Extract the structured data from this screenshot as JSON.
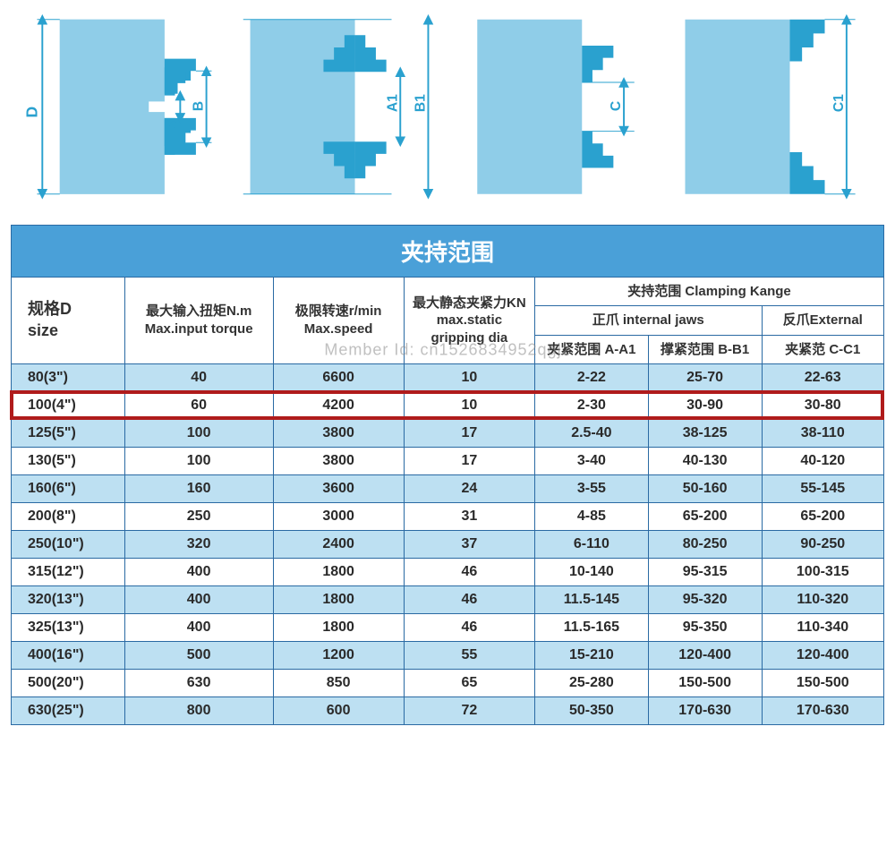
{
  "watermark": "Member Id: cn1526834952qgjz",
  "colors": {
    "shape_fill": "#2aa1cf",
    "shape_fill_light": "#8fcde8",
    "dim_line": "#2aa1cf",
    "border": "#2a6aa3",
    "header_bg": "#4aa0d8",
    "row_alt": "#bde0f2",
    "highlight": "#b01b1b"
  },
  "diagrams": {
    "labels": {
      "D": "D",
      "A": "A",
      "B": "B",
      "A1": "A1",
      "B1": "B1",
      "C": "C",
      "C1": "C1"
    }
  },
  "table": {
    "title": "夹持范围",
    "columns": {
      "size": {
        "l1": "规格D",
        "l2": "size"
      },
      "torque": {
        "l1": "最大输入扭矩N.m",
        "l2": "Max.input torque"
      },
      "speed": {
        "l1": "极限转速r/min",
        "l2": "Max.speed"
      },
      "grip": {
        "l1": "最大静态夹紧力KN",
        "l2": "max.static",
        "l3": "gripping dia"
      },
      "range_group": "夹持范围 Clamping Kange",
      "internal": "正爪 internal jaws",
      "external": "反爪External",
      "aa1": "夹紧范围 A-A1",
      "bb1": "撑紧范围 B-B1",
      "cc1": "夹紧范 C-C1"
    },
    "col_widths_pct": [
      13,
      17,
      15,
      15,
      13,
      13,
      14
    ],
    "highlight_row_index": 1,
    "rows": [
      {
        "size": "80(3\")",
        "torque": "40",
        "speed": "6600",
        "grip": "10",
        "aa1": "2-22",
        "bb1": "25-70",
        "cc1": "22-63"
      },
      {
        "size": "100(4\")",
        "torque": "60",
        "speed": "4200",
        "grip": "10",
        "aa1": "2-30",
        "bb1": "30-90",
        "cc1": "30-80"
      },
      {
        "size": "125(5\")",
        "torque": "100",
        "speed": "3800",
        "grip": "17",
        "aa1": "2.5-40",
        "bb1": "38-125",
        "cc1": "38-110"
      },
      {
        "size": "130(5\")",
        "torque": "100",
        "speed": "3800",
        "grip": "17",
        "aa1": "3-40",
        "bb1": "40-130",
        "cc1": "40-120"
      },
      {
        "size": "160(6\")",
        "torque": "160",
        "speed": "3600",
        "grip": "24",
        "aa1": "3-55",
        "bb1": "50-160",
        "cc1": "55-145"
      },
      {
        "size": "200(8\")",
        "torque": "250",
        "speed": "3000",
        "grip": "31",
        "aa1": "4-85",
        "bb1": "65-200",
        "cc1": "65-200"
      },
      {
        "size": "250(10\")",
        "torque": "320",
        "speed": "2400",
        "grip": "37",
        "aa1": "6-110",
        "bb1": "80-250",
        "cc1": "90-250"
      },
      {
        "size": "315(12\")",
        "torque": "400",
        "speed": "1800",
        "grip": "46",
        "aa1": "10-140",
        "bb1": "95-315",
        "cc1": "100-315"
      },
      {
        "size": "320(13\")",
        "torque": "400",
        "speed": "1800",
        "grip": "46",
        "aa1": "11.5-145",
        "bb1": "95-320",
        "cc1": "110-320"
      },
      {
        "size": "325(13\")",
        "torque": "400",
        "speed": "1800",
        "grip": "46",
        "aa1": "11.5-165",
        "bb1": "95-350",
        "cc1": "110-340"
      },
      {
        "size": "400(16\")",
        "torque": "500",
        "speed": "1200",
        "grip": "55",
        "aa1": "15-210",
        "bb1": "120-400",
        "cc1": "120-400"
      },
      {
        "size": "500(20\")",
        "torque": "630",
        "speed": "850",
        "grip": "65",
        "aa1": "25-280",
        "bb1": "150-500",
        "cc1": "150-500"
      },
      {
        "size": "630(25\")",
        "torque": "800",
        "speed": "600",
        "grip": "72",
        "aa1": "50-350",
        "bb1": "170-630",
        "cc1": "170-630"
      }
    ]
  }
}
